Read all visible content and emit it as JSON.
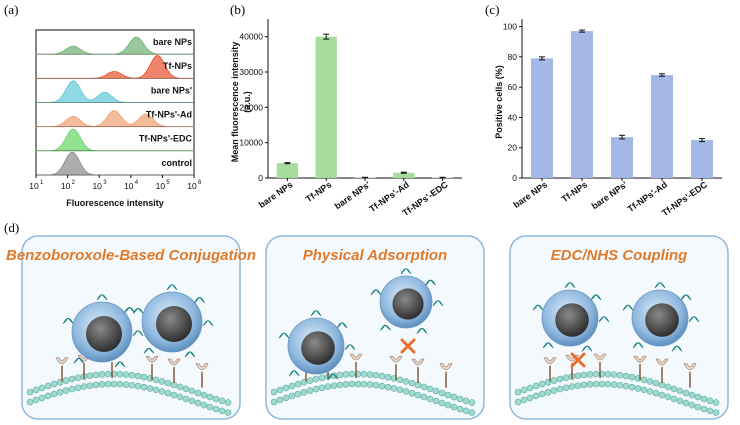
{
  "panel_labels": {
    "a": "(a)",
    "b": "(b)",
    "c": "(c)",
    "d": "(d)"
  },
  "colors": {
    "bar_green": "#a6dc9c",
    "bar_blue": "#a3b8e6",
    "title_orange": "#e07a2a",
    "box_border": "#8fb9dd",
    "box_fill": "#f4f9fe"
  },
  "chart_data": [
    {
      "type": "area",
      "panel": "a",
      "xlabel": "Fluorescence intensity",
      "ylabel": "",
      "xscale": "log",
      "xlim": [
        10,
        1000000
      ],
      "x_ticks": [
        "10",
        "10",
        "10",
        "10",
        "10",
        "10"
      ],
      "x_tick_exponents": [
        "1",
        "2",
        "3",
        "4",
        "5",
        "6"
      ],
      "series": [
        {
          "name": "bare NPs",
          "color": "#6fb06f",
          "peaks": [
            [
              150,
              0.35
            ],
            [
              15000,
              0.75
            ]
          ]
        },
        {
          "name": "Tf-NPs",
          "color": "#e8502f",
          "peaks": [
            [
              3000,
              0.3
            ],
            [
              70000,
              1.0
            ]
          ]
        },
        {
          "name": "bare NPs'",
          "color": "#5fc8d8",
          "peaks": [
            [
              150,
              0.95
            ],
            [
              1500,
              0.45
            ]
          ]
        },
        {
          "name": "Tf-NPs'-Ad",
          "color": "#f0a070",
          "peaks": [
            [
              150,
              0.45
            ],
            [
              3000,
              0.7
            ],
            [
              30000,
              0.55
            ]
          ]
        },
        {
          "name": "Tf-NPs'-EDC",
          "color": "#66d466",
          "peaks": [
            [
              150,
              0.95
            ]
          ]
        },
        {
          "name": "control",
          "color": "#8a8a8a",
          "peaks": [
            [
              140,
              1.0
            ]
          ]
        }
      ]
    },
    {
      "type": "bar",
      "panel": "b",
      "categories": [
        "bare NPs",
        "Tf-NPs",
        "bare NPs'",
        "Tf-NPs'-Ad",
        "Tf-NPs'-EDC"
      ],
      "values": [
        4200,
        40000,
        150,
        1500,
        150
      ],
      "errors": [
        150,
        700,
        50,
        150,
        50
      ],
      "ylabel_line1": "Mean fluorescence intensity",
      "ylabel_line2": "(a.u.)",
      "ylim": [
        0,
        45000
      ],
      "yticks": [
        0,
        10000,
        20000,
        30000,
        40000
      ]
    },
    {
      "type": "bar",
      "panel": "c",
      "categories": [
        "bare NPs",
        "Tf-NPs",
        "bare NPs'",
        "Tf-NPs'-Ad",
        "Tf-NPs'-EDC"
      ],
      "values": [
        79,
        97,
        27,
        68,
        25
      ],
      "errors": [
        1,
        0.7,
        1.2,
        0.8,
        1
      ],
      "ylabel": "Positive cells (%)",
      "ylim": [
        0,
        105
      ],
      "yticks": [
        0,
        20,
        40,
        60,
        80,
        100
      ]
    }
  ],
  "schematics": [
    {
      "title": "Benzoboroxole-Based Conjugation"
    },
    {
      "title": "Physical Adsorption"
    },
    {
      "title": "EDC/NHS Coupling"
    }
  ]
}
